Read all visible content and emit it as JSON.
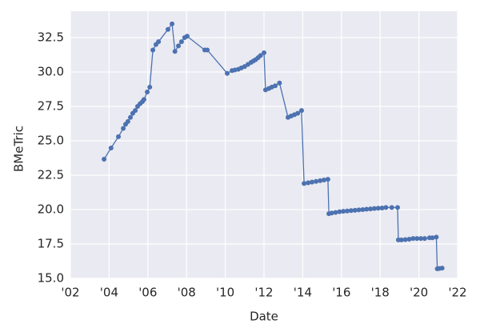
{
  "chart_data": {
    "type": "line",
    "xlabel": "Date",
    "ylabel": "BMeTric",
    "x": [
      2003.74,
      2004.1,
      2004.48,
      2004.73,
      2004.85,
      2004.97,
      2005.1,
      2005.22,
      2005.35,
      2005.47,
      2005.6,
      2005.72,
      2005.8,
      2005.97,
      2006.1,
      2006.26,
      2006.42,
      2006.55,
      2007.04,
      2007.25,
      2007.4,
      2007.58,
      2007.74,
      2007.9,
      2008.03,
      2008.94,
      2009.07,
      2010.1,
      2010.35,
      2010.5,
      2010.67,
      2010.83,
      2011.0,
      2011.17,
      2011.33,
      2011.45,
      2011.57,
      2011.7,
      2011.82,
      2012.0,
      2012.08,
      2012.25,
      2012.4,
      2012.58,
      2012.8,
      2013.24,
      2013.4,
      2013.57,
      2013.74,
      2013.94,
      2014.07,
      2014.28,
      2014.48,
      2014.69,
      2014.9,
      2015.1,
      2015.3,
      2015.35,
      2015.5,
      2015.7,
      2015.9,
      2016.1,
      2016.3,
      2016.5,
      2016.7,
      2016.9,
      2017.1,
      2017.3,
      2017.5,
      2017.7,
      2017.9,
      2018.1,
      2018.3,
      2018.6,
      2018.9,
      2018.94,
      2019.1,
      2019.3,
      2019.5,
      2019.7,
      2019.9,
      2020.1,
      2020.3,
      2020.55,
      2020.7,
      2020.9,
      2020.95,
      2021.05,
      2021.2
    ],
    "values": [
      23.66,
      24.48,
      25.3,
      25.9,
      26.2,
      26.4,
      26.7,
      27.0,
      27.2,
      27.5,
      27.7,
      27.85,
      28.0,
      28.55,
      28.9,
      31.6,
      32.0,
      32.2,
      33.1,
      33.5,
      31.5,
      31.9,
      32.2,
      32.5,
      32.6,
      31.6,
      31.6,
      29.9,
      30.1,
      30.15,
      30.2,
      30.3,
      30.4,
      30.55,
      30.7,
      30.8,
      30.9,
      31.05,
      31.2,
      31.4,
      28.7,
      28.8,
      28.9,
      29.0,
      29.2,
      26.7,
      26.8,
      26.9,
      27.0,
      27.2,
      21.9,
      21.95,
      22.0,
      22.05,
      22.1,
      22.15,
      22.2,
      19.7,
      19.75,
      19.8,
      19.85,
      19.88,
      19.9,
      19.93,
      19.95,
      19.98,
      20.0,
      20.03,
      20.05,
      20.08,
      20.1,
      20.12,
      20.15,
      20.15,
      20.15,
      17.8,
      17.8,
      17.82,
      17.85,
      17.9,
      17.9,
      17.9,
      17.9,
      17.95,
      17.95,
      18.0,
      15.7,
      15.72,
      15.75
    ],
    "color": "#4c72b0",
    "xlim": [
      2002,
      2022
    ],
    "xticks": [
      {
        "value": 2002,
        "label": "'02"
      },
      {
        "value": 2004,
        "label": "'04"
      },
      {
        "value": 2006,
        "label": "'06"
      },
      {
        "value": 2008,
        "label": "'08"
      },
      {
        "value": 2010,
        "label": "'10"
      },
      {
        "value": 2012,
        "label": "'12"
      },
      {
        "value": 2014,
        "label": "'14"
      },
      {
        "value": 2016,
        "label": "'16"
      },
      {
        "value": 2018,
        "label": "'18"
      },
      {
        "value": 2020,
        "label": "'20"
      },
      {
        "value": 2022,
        "label": "'22"
      }
    ],
    "ylim": [
      15,
      34.42
    ],
    "yticks": [
      {
        "value": 15,
        "label": "15.0"
      },
      17.5,
      {
        "value": 20,
        "label": "20.0"
      },
      22.5,
      {
        "value": 25,
        "label": "25.0"
      },
      27.5,
      {
        "value": 30,
        "label": "30.0"
      },
      32.5
    ],
    "grid": true
  }
}
